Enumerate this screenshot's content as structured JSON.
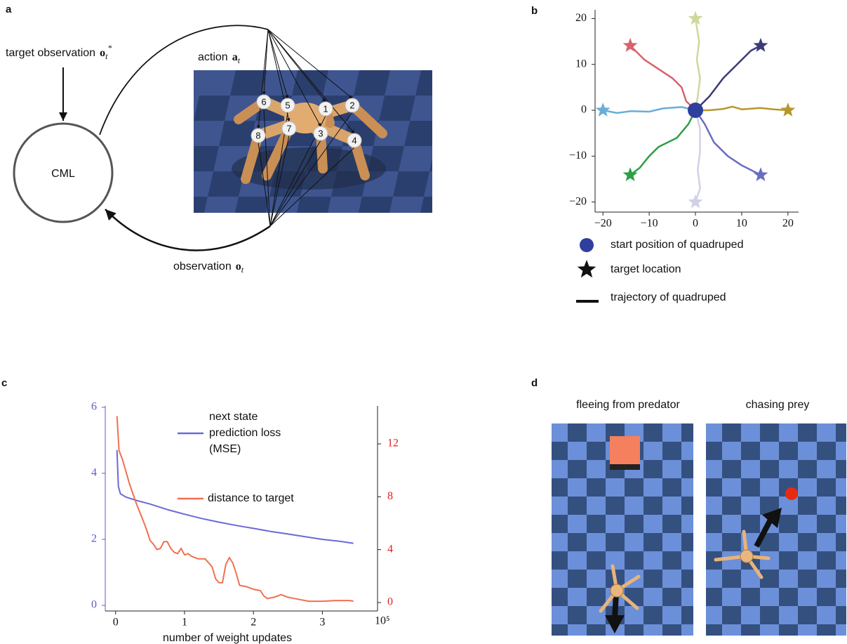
{
  "panel_labels": [
    "a",
    "b",
    "c",
    "d"
  ],
  "panel_a": {
    "target": {
      "text": "target observation",
      "symbol": "o",
      "sub": "t",
      "sup": "*"
    },
    "action": {
      "text": "action",
      "symbol": "a",
      "sub": "t"
    },
    "observation": {
      "text": "observation",
      "symbol": "o",
      "sub": "t"
    },
    "model": "CML",
    "joints": [
      "6",
      "5",
      "1",
      "2",
      "8",
      "7",
      "3",
      "4"
    ]
  },
  "chart_data": [
    {
      "type": "line",
      "xlim": [
        -21.7,
        22.3
      ],
      "ylim": [
        -22.2,
        21.9
      ],
      "xticks": [
        {
          "value": -20,
          "label": "−20"
        },
        {
          "value": -10,
          "label": "−10"
        },
        0,
        10,
        20
      ],
      "yticks": [
        {
          "value": -20,
          "label": "−20"
        },
        {
          "value": -10,
          "label": "−10"
        },
        0,
        10,
        20
      ],
      "start_color": "#2e3f9e",
      "legend_entries": [
        "start position of quadruped",
        "target location",
        "trajectory of quadruped"
      ],
      "series": [
        {
          "color": "#b8962e",
          "x": [
            0,
            3,
            6,
            8,
            10,
            14,
            17,
            20
          ],
          "values": [
            0,
            0,
            0.3,
            0.8,
            0.2,
            0.5,
            0.2,
            0
          ]
        },
        {
          "color": "#3b3a7a",
          "x": [
            0,
            3,
            6,
            9,
            12,
            14.1
          ],
          "values": [
            0,
            3,
            7,
            10,
            13,
            14.1
          ]
        },
        {
          "color": "#cdd99a",
          "x": [
            0,
            0.5,
            1,
            0.3,
            0.8,
            0
          ],
          "values": [
            0,
            3,
            7,
            11,
            15,
            20
          ]
        },
        {
          "color": "#d9626b",
          "x": [
            0,
            -2,
            -3,
            -5,
            -8,
            -11,
            -14.1
          ],
          "values": [
            0,
            2,
            5,
            7,
            9,
            11,
            14.1
          ]
        },
        {
          "color": "#6aaed6",
          "x": [
            0,
            -3,
            -7,
            -10,
            -14,
            -17,
            -20
          ],
          "values": [
            0,
            0.7,
            0.4,
            -0.3,
            -0.2,
            -0.6,
            0
          ]
        },
        {
          "color": "#2ca048",
          "x": [
            0,
            -1.5,
            -4,
            -8,
            -10,
            -12,
            -14.1
          ],
          "values": [
            0,
            -3,
            -6,
            -8,
            -10,
            -12.5,
            -14.1
          ]
        },
        {
          "color": "#d0d0e8",
          "x": [
            0,
            1,
            1,
            0.5,
            1,
            0
          ],
          "values": [
            0,
            -4,
            -9,
            -13,
            -17,
            -20
          ]
        },
        {
          "color": "#6a6ec0",
          "x": [
            0,
            2,
            4,
            7,
            10,
            14.1
          ],
          "values": [
            0,
            -3,
            -7,
            -10,
            -12,
            -14.1
          ]
        }
      ]
    },
    {
      "type": "line",
      "xlabel": "number of weight updates",
      "x_offset_label": "10⁵",
      "xlim": [
        -0.15,
        3.8
      ],
      "xticks": [
        0,
        1,
        2,
        3
      ],
      "ylim": [
        -0.17,
        6.04
      ],
      "yticks": [
        0,
        2,
        4,
        6
      ],
      "ytick_color": "#5a5ad0",
      "y2lim": [
        -0.64,
        14.87
      ],
      "y2ticks": [
        0,
        4,
        8,
        12
      ],
      "y2tick_color": "#e02020",
      "series": [
        {
          "name": "next state prediction loss (MSE)",
          "color": "#6a6ad8",
          "x": [
            0.02,
            0.04,
            0.07,
            0.15,
            0.3,
            0.5,
            0.75,
            1,
            1.25,
            1.5,
            1.75,
            2,
            2.25,
            2.5,
            2.75,
            3,
            3.25,
            3.45
          ],
          "values": [
            4.7,
            3.6,
            3.38,
            3.28,
            3.18,
            3.07,
            2.9,
            2.76,
            2.63,
            2.52,
            2.42,
            2.33,
            2.24,
            2.16,
            2.08,
            2.0,
            1.94,
            1.88
          ]
        },
        {
          "name": "distance to target",
          "color": "#f07050",
          "axis": "y2",
          "x": [
            0.02,
            0.05,
            0.1,
            0.2,
            0.3,
            0.4,
            0.45,
            0.5,
            0.55,
            0.6,
            0.65,
            0.7,
            0.75,
            0.8,
            0.85,
            0.9,
            0.95,
            1.0,
            1.05,
            1.1,
            1.2,
            1.3,
            1.4,
            1.45,
            1.5,
            1.55,
            1.6,
            1.65,
            1.7,
            1.75,
            1.8,
            1.9,
            2.0,
            2.1,
            2.15,
            2.2,
            2.3,
            2.4,
            2.5,
            2.6,
            2.8,
            3.0,
            3.2,
            3.4,
            3.45
          ],
          "values": [
            14.1,
            11.5,
            10.8,
            9.0,
            7.5,
            6.2,
            5.5,
            4.7,
            4.4,
            4.0,
            4.1,
            4.6,
            4.6,
            4.1,
            3.8,
            3.7,
            4.1,
            3.6,
            3.7,
            3.5,
            3.3,
            3.3,
            2.7,
            1.8,
            1.5,
            1.5,
            2.9,
            3.4,
            3.0,
            2.2,
            1.3,
            1.2,
            1.0,
            0.9,
            0.5,
            0.3,
            0.4,
            0.6,
            0.4,
            0.3,
            0.1,
            0.1,
            0.15,
            0.15,
            0.1
          ]
        }
      ]
    }
  ],
  "panel_d": {
    "titles": [
      "fleeing from predator",
      "chasing prey"
    ]
  }
}
